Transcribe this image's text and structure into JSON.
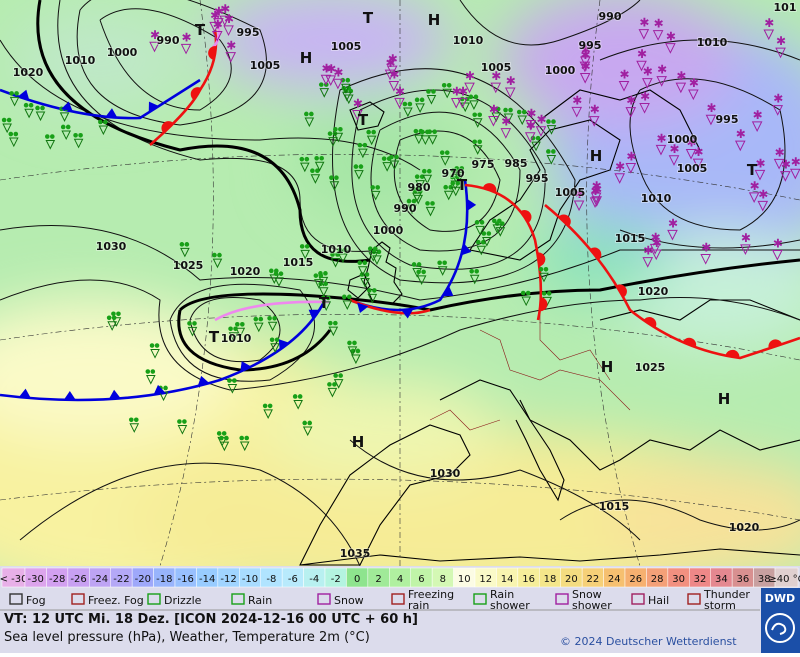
{
  "map": {
    "pressure_labels": [
      "990",
      "995",
      "1000",
      "1010",
      "1020",
      "1005",
      "1005",
      "1010",
      "1005",
      "990",
      "995",
      "1000",
      "1010",
      "995",
      "1000",
      "1005",
      "1010",
      "970",
      "975",
      "985",
      "995",
      "1005",
      "980",
      "990",
      "1000",
      "1010",
      "1015",
      "1020",
      "1025",
      "1030",
      "1015",
      "1020",
      "1025",
      "1010",
      "1030",
      "1015",
      "1020",
      "1035",
      "101"
    ],
    "centers": [
      "T",
      "T",
      "H",
      "H",
      "T",
      "H",
      "T",
      "T",
      "T",
      "T",
      "H",
      "H",
      "H"
    ]
  },
  "temperature_scale": {
    "cells": [
      {
        "label": "< -30",
        "color": "#e8b0e8"
      },
      {
        "label": "-30",
        "color": "#dca4ec"
      },
      {
        "label": "-28",
        "color": "#d2a0f0"
      },
      {
        "label": "-26",
        "color": "#c8a0f2"
      },
      {
        "label": "-24",
        "color": "#bea4f4"
      },
      {
        "label": "-22",
        "color": "#b4a8f6"
      },
      {
        "label": "-20",
        "color": "#9ea8fa"
      },
      {
        "label": "-18",
        "color": "#98b4fc"
      },
      {
        "label": "-16",
        "color": "#98c0fe"
      },
      {
        "label": "-14",
        "color": "#98ccff"
      },
      {
        "label": "-12",
        "color": "#a0d4ff"
      },
      {
        "label": "-10",
        "color": "#a8dcff"
      },
      {
        "label": "-8",
        "color": "#b0e4ff"
      },
      {
        "label": "-6",
        "color": "#b8eafc"
      },
      {
        "label": "-4",
        "color": "#b8f0f0"
      },
      {
        "label": "-2",
        "color": "#b4f4e0"
      },
      {
        "label": "0",
        "color": "#8ee48e"
      },
      {
        "label": "2",
        "color": "#a0ea98"
      },
      {
        "label": "4",
        "color": "#b0f0a0"
      },
      {
        "label": "6",
        "color": "#c0f4a8"
      },
      {
        "label": "8",
        "color": "#d4f8b4"
      },
      {
        "label": "10",
        "color": "#fcfce4"
      },
      {
        "label": "12",
        "color": "#fafac8"
      },
      {
        "label": "14",
        "color": "#f8f4b0"
      },
      {
        "label": "16",
        "color": "#f6ee9a"
      },
      {
        "label": "18",
        "color": "#f4e68a"
      },
      {
        "label": "20",
        "color": "#f4dc80"
      },
      {
        "label": "22",
        "color": "#f6d078"
      },
      {
        "label": "24",
        "color": "#f6c070"
      },
      {
        "label": "26",
        "color": "#f6b070"
      },
      {
        "label": "28",
        "color": "#f4a078"
      },
      {
        "label": "30",
        "color": "#f29080"
      },
      {
        "label": "32",
        "color": "#ee8888"
      },
      {
        "label": "34",
        "color": "#e48890"
      },
      {
        "label": "36",
        "color": "#d89090"
      },
      {
        "label": "38",
        "color": "#c8a0a0"
      },
      {
        "label": "≥40 °C",
        "color": "#e0d0d0"
      }
    ]
  },
  "legend": [
    "Fog",
    "Freez. Fog",
    "Drizzle",
    "Rain",
    "Snow",
    "Freezing rain",
    "Rain shower",
    "Snow shower",
    "Hail",
    "Thunder storm"
  ],
  "footer": {
    "valid_time": "VT: 12 UTC Mi.  18 Dez. [ICON 2024-12-16  00 UTC + 60 h]",
    "description": "Sea level pressure (hPa), Weather, Temperature 2m (°C)",
    "copyright": "© 2024 Deutscher Wetterdienst",
    "logo": "DWD"
  }
}
